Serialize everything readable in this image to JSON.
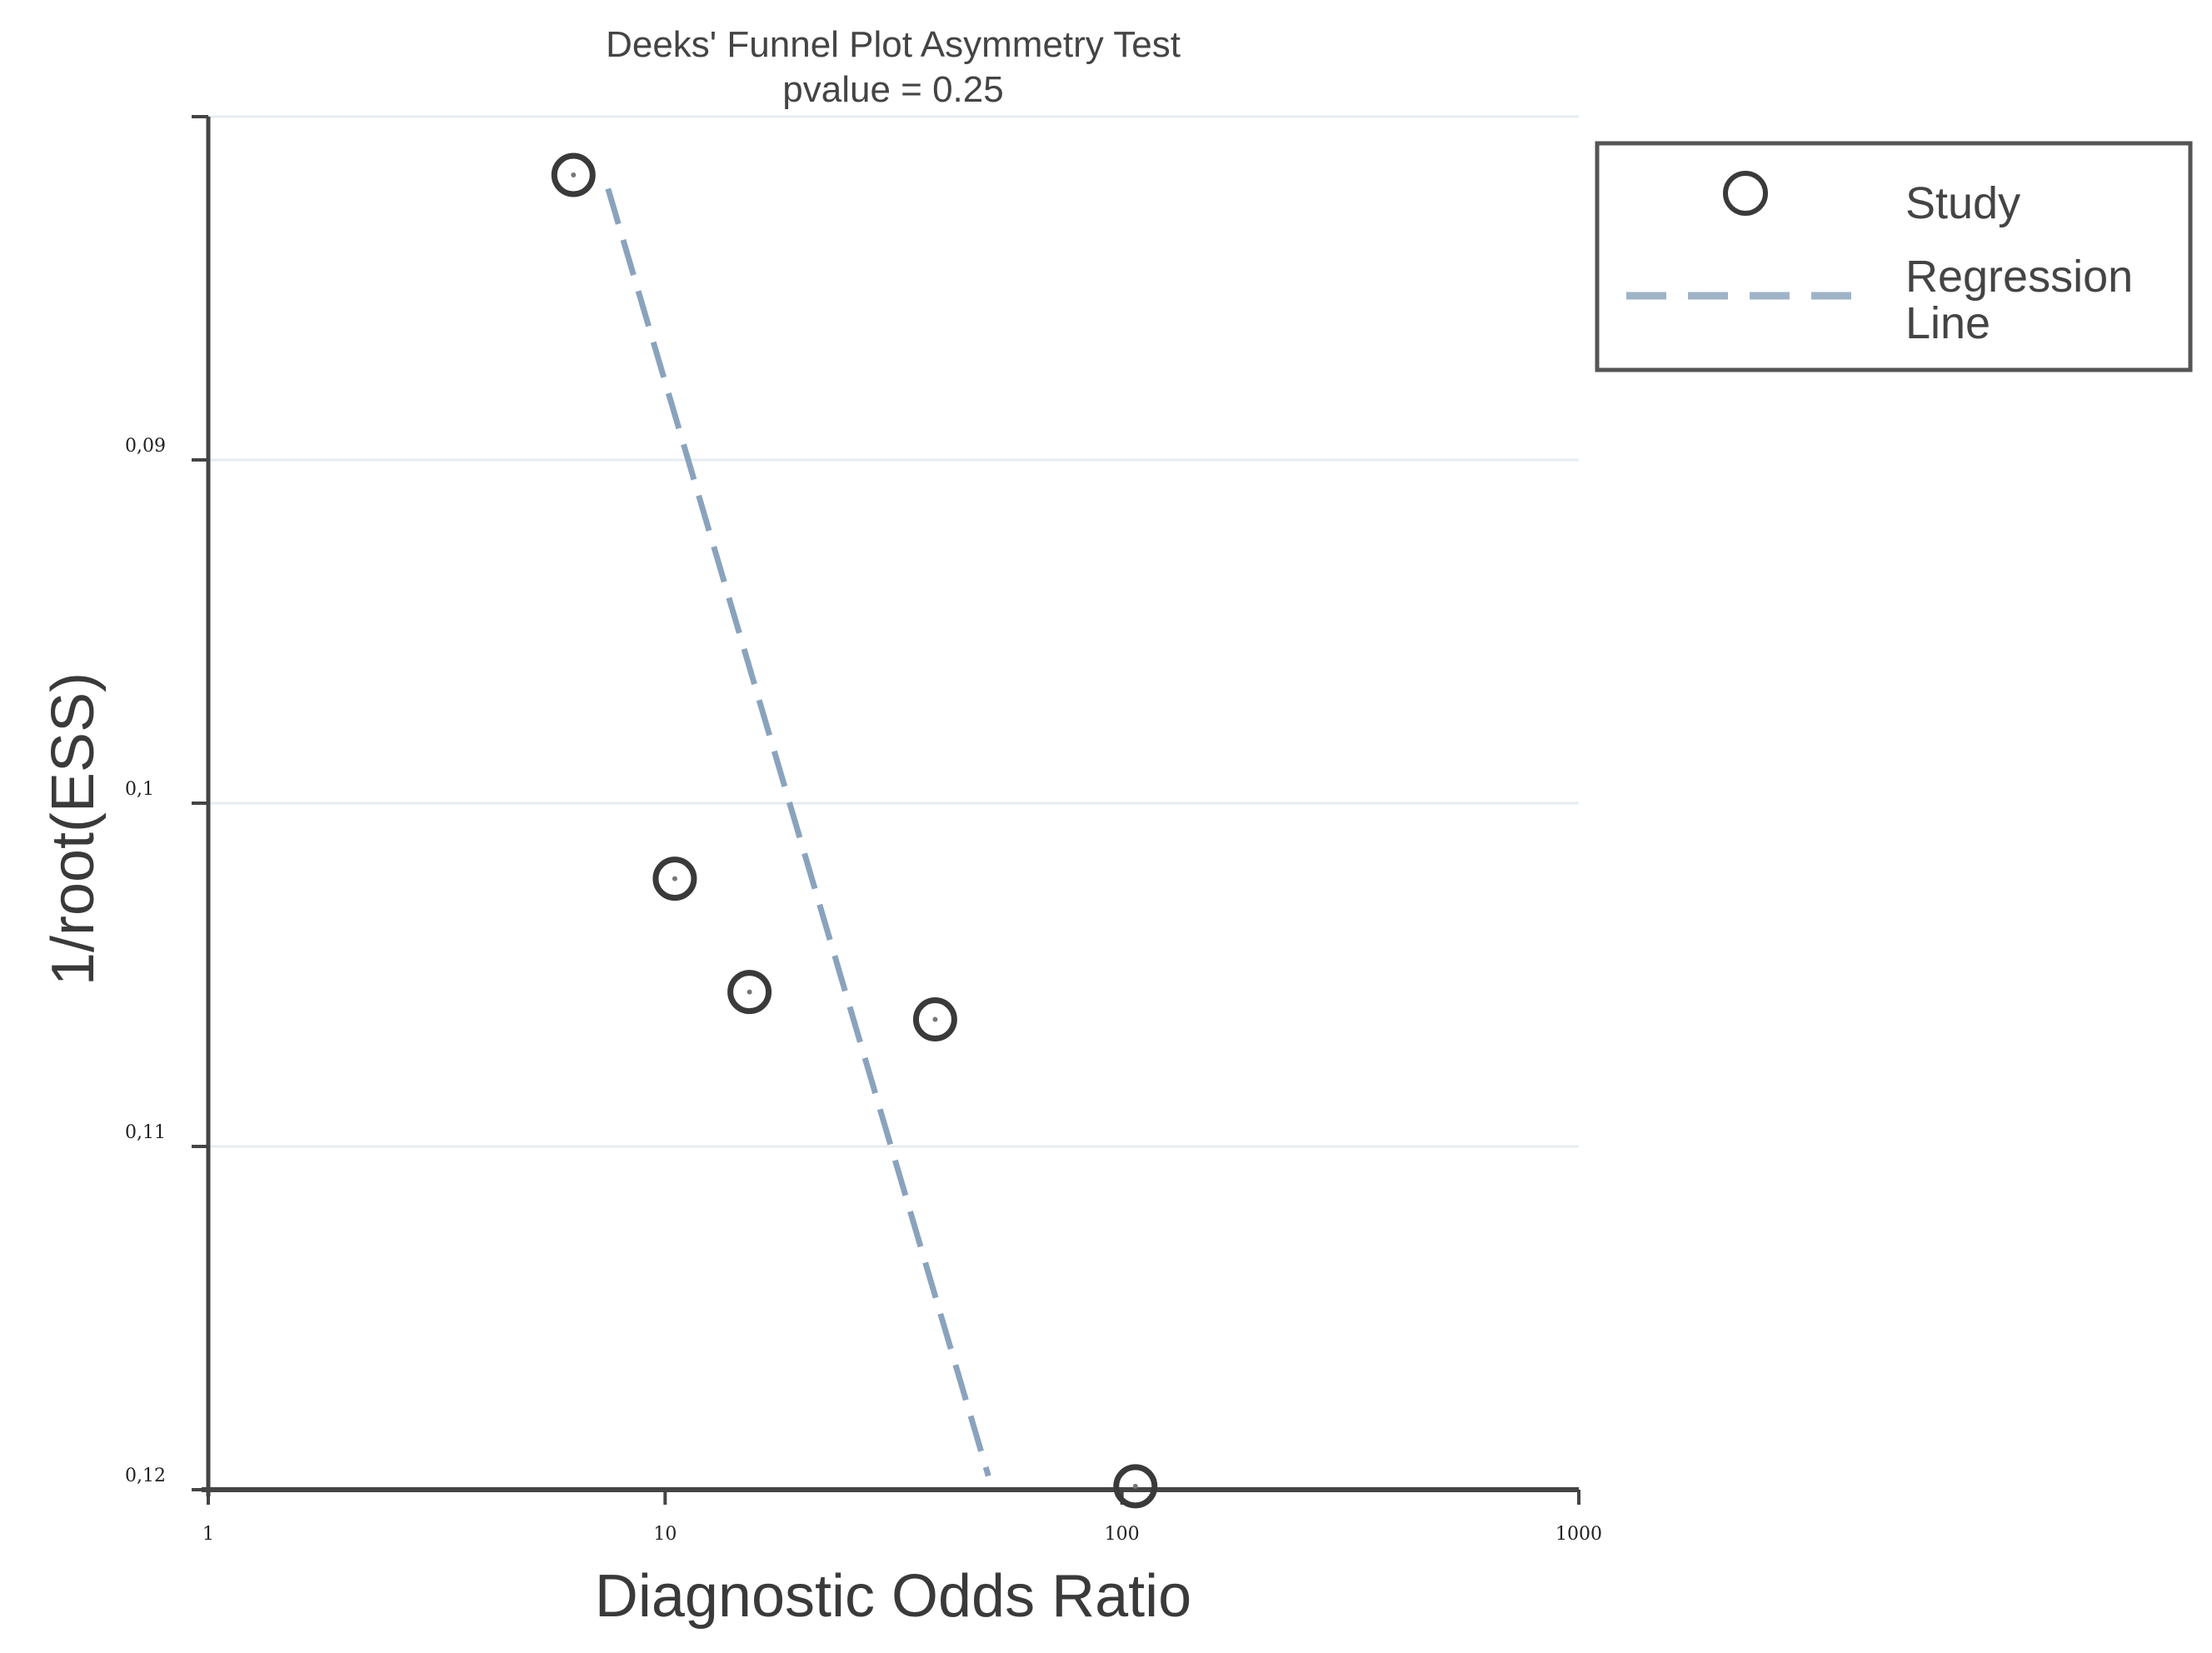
{
  "chart_data": {
    "type": "scatter",
    "title": "Deeks' Funnel Plot Asymmetry Test",
    "subtitle": "pvalue  =   0.25",
    "xlabel": "Diagnostic Odds Ratio",
    "ylabel": "1/root(ESS)",
    "x_scale": "log",
    "xlim": [
      1,
      1000
    ],
    "x_ticks": [
      1,
      10,
      100,
      1000
    ],
    "x_tick_labels": [
      "1",
      "10",
      "100",
      "1000"
    ],
    "ylim": [
      0.08,
      0.12
    ],
    "y_inverted": true,
    "y_ticks": [
      0.08,
      0.09,
      0.1,
      0.11,
      0.12
    ],
    "y_tick_labels": [
      "",
      "0,09",
      "0,1",
      "0,11",
      "0,12"
    ],
    "grid": true,
    "series": [
      {
        "name": "Study",
        "kind": "points",
        "x": [
          6.3,
          10.5,
          15.3,
          39.0,
          107.0
        ],
        "y": [
          0.0817,
          0.1022,
          0.1055,
          0.1063,
          0.1199
        ]
      },
      {
        "name": "Regression Line",
        "kind": "dashed-line",
        "x": [
          7.5,
          51.0
        ],
        "y": [
          0.0821,
          0.1196
        ]
      }
    ],
    "legend": {
      "position": "top-right",
      "entries": [
        {
          "label": "Study",
          "marker": "circle"
        },
        {
          "label": "Regression\nLine",
          "marker": "dashed-line"
        }
      ]
    },
    "colors": {
      "point": "#3a3a3a",
      "regression": "#8aa3bd",
      "axis": "#444444",
      "grid": "#e6ecf2",
      "plot_bg": "#ffffff"
    }
  }
}
